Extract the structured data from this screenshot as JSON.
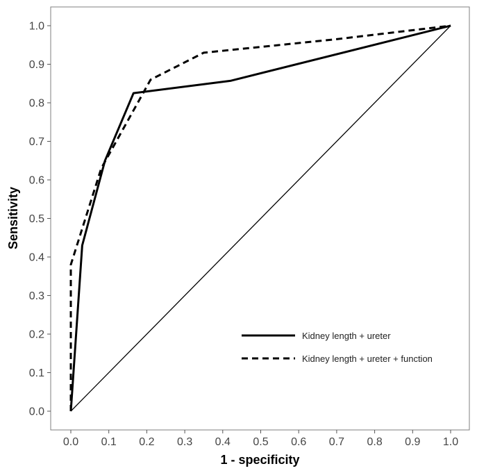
{
  "chart_data": {
    "type": "line",
    "title": "",
    "xlabel": "1 - specificity",
    "ylabel": "Sensitivity",
    "xlim": [
      0,
      1
    ],
    "ylim": [
      0,
      1
    ],
    "x_ticks": [
      "0.0",
      "0.1",
      "0.2",
      "0.3",
      "0.4",
      "0.5",
      "0.6",
      "0.7",
      "0.8",
      "0.9",
      "1.0"
    ],
    "y_ticks": [
      "0.0",
      "0.1",
      "0.2",
      "0.3",
      "0.4",
      "0.5",
      "0.6",
      "0.7",
      "0.8",
      "0.9",
      "1.0"
    ],
    "grid": false,
    "legend_position": "bottom-right",
    "series": [
      {
        "name": "Kidney length + ureter",
        "style": "solid",
        "color": "#000000",
        "x": [
          0.0,
          0.03,
          0.09,
          0.165,
          0.42,
          1.0
        ],
        "y": [
          0.0,
          0.43,
          0.65,
          0.825,
          0.857,
          1.0
        ]
      },
      {
        "name": "Kidney length + ureter + function",
        "style": "dashed",
        "color": "#000000",
        "x": [
          0.0,
          0.0,
          0.08,
          0.21,
          0.35,
          0.7,
          1.0
        ],
        "y": [
          0.0,
          0.38,
          0.63,
          0.86,
          0.93,
          0.965,
          1.0
        ]
      },
      {
        "name": "",
        "style": "reference",
        "color": "#000000",
        "x": [
          0.0,
          1.0
        ],
        "y": [
          0.0,
          1.0
        ]
      }
    ]
  }
}
